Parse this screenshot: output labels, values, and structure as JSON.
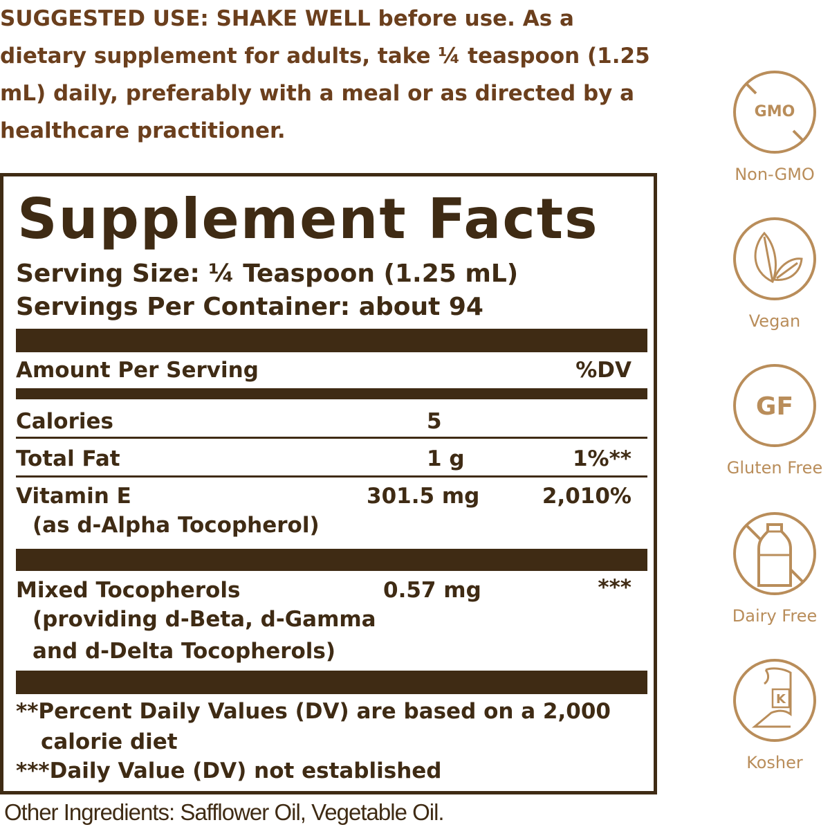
{
  "suggested_use": {
    "lines": [
      "SUGGESTED USE: SHAKE WELL before use. As a",
      "dietary supplement for adults, take ¼ teaspoon (1.25",
      "mL) daily, preferably with a meal or as directed by a",
      "healthcare practitioner."
    ]
  },
  "facts": {
    "title": "Supplement Facts",
    "serving_size": "Serving Size: ¼ Teaspoon (1.25 mL)",
    "servings_per_container": "Servings Per Container: about 94",
    "header": {
      "left": "Amount Per Serving",
      "right": "%DV"
    },
    "rows": [
      {
        "name": "Calories",
        "amount": "5",
        "dv": ""
      },
      {
        "name": "Total Fat",
        "amount": "1 g",
        "dv": "1%**"
      },
      {
        "name": "Vitamin E",
        "sub": "(as d-Alpha Tocopherol)",
        "amount": "301.5 mg",
        "dv": "2,010%"
      },
      {
        "name": "Mixed Tocopherols",
        "sub1": "(providing d-Beta, d-Gamma",
        "sub2": "and d-Delta Tocopherols)",
        "amount": "0.57 mg",
        "dv": "***"
      }
    ],
    "footnotes": [
      "**Percent Daily Values (DV) are based on a 2,000",
      "calorie diet",
      "***Daily Value (DV) not established"
    ]
  },
  "other_ingredients": "Other Ingredients: Safflower Oil, Vegetable Oil.",
  "badges": [
    {
      "label": "Non-GMO",
      "icon": "non-gmo-icon",
      "text": "GMO"
    },
    {
      "label": "Vegan",
      "icon": "leaf-icon"
    },
    {
      "label": "Gluten Free",
      "icon": "gluten-free-icon",
      "text": "GF"
    },
    {
      "label": "Dairy Free",
      "icon": "dairy-free-icon"
    },
    {
      "label": "Kosher",
      "icon": "kosher-icon",
      "text": "K"
    }
  ],
  "colors": {
    "text_brown": "#3f2b14",
    "suggested_brown": "#6b3f1d",
    "badge_tan": "#b98d5a"
  }
}
